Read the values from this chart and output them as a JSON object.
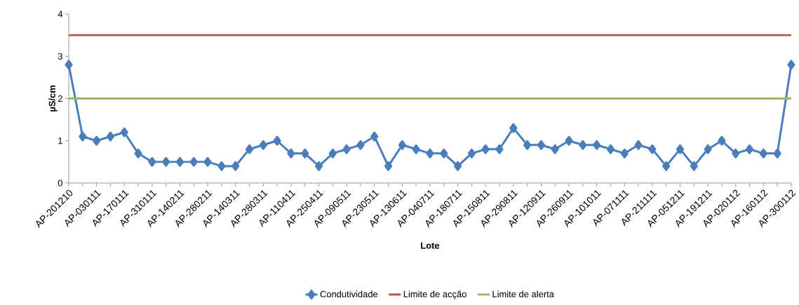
{
  "chart_data": {
    "type": "line",
    "xlabel": "Lote",
    "ylabel": "µS/cm",
    "categories": [
      "AP-201210",
      null,
      "AP-030111",
      null,
      "AP-170111",
      null,
      "AP-310111",
      null,
      "AP-140211",
      null,
      "AP-280211",
      null,
      "AP-140311",
      null,
      "AP-280311",
      null,
      "AP-110411",
      null,
      "AP-250411",
      null,
      "AP-090511",
      null,
      "AP-230511",
      null,
      "AP-130611",
      null,
      "AP-040711",
      null,
      "AP-180711",
      null,
      "AP-150811",
      null,
      "AP-290811",
      null,
      "AP-120911",
      null,
      "AP-260911",
      null,
      "AP-101011",
      null,
      "AP-071111",
      null,
      "AP-211111",
      null,
      "AP-051211",
      null,
      "AP-191211",
      null,
      "AP-020112",
      null,
      "AP-160112",
      null,
      "AP-300112"
    ],
    "series": [
      {
        "name": "Condutividade",
        "color": "#4a7ebb",
        "values": [
          2.8,
          1.1,
          1.0,
          1.1,
          1.2,
          0.7,
          0.5,
          0.5,
          0.5,
          0.5,
          0.5,
          0.4,
          0.4,
          0.8,
          0.9,
          1.0,
          0.7,
          0.7,
          0.4,
          0.7,
          0.8,
          0.9,
          1.1,
          0.4,
          0.9,
          0.8,
          0.7,
          0.7,
          0.4,
          0.7,
          0.8,
          0.8,
          1.3,
          0.9,
          0.9,
          0.8,
          1.0,
          0.9,
          0.9,
          0.8,
          0.7,
          0.9,
          0.8,
          0.4,
          0.8,
          0.4,
          0.8,
          1.0,
          0.7,
          0.8,
          0.7,
          0.7,
          2.8
        ]
      }
    ],
    "ref_lines": [
      {
        "axis": "y",
        "value": 3.5,
        "label": "Limite de acção",
        "color": "#c0504d"
      },
      {
        "axis": "y",
        "value": 2,
        "label": "Limite de alerta",
        "color": "#9bbb59"
      }
    ],
    "ylim": [
      0,
      4
    ],
    "yticks": [
      0,
      1,
      2,
      3,
      4
    ],
    "marker": "diamond",
    "line_style": "solid",
    "grid": false,
    "legend": "bottom"
  }
}
